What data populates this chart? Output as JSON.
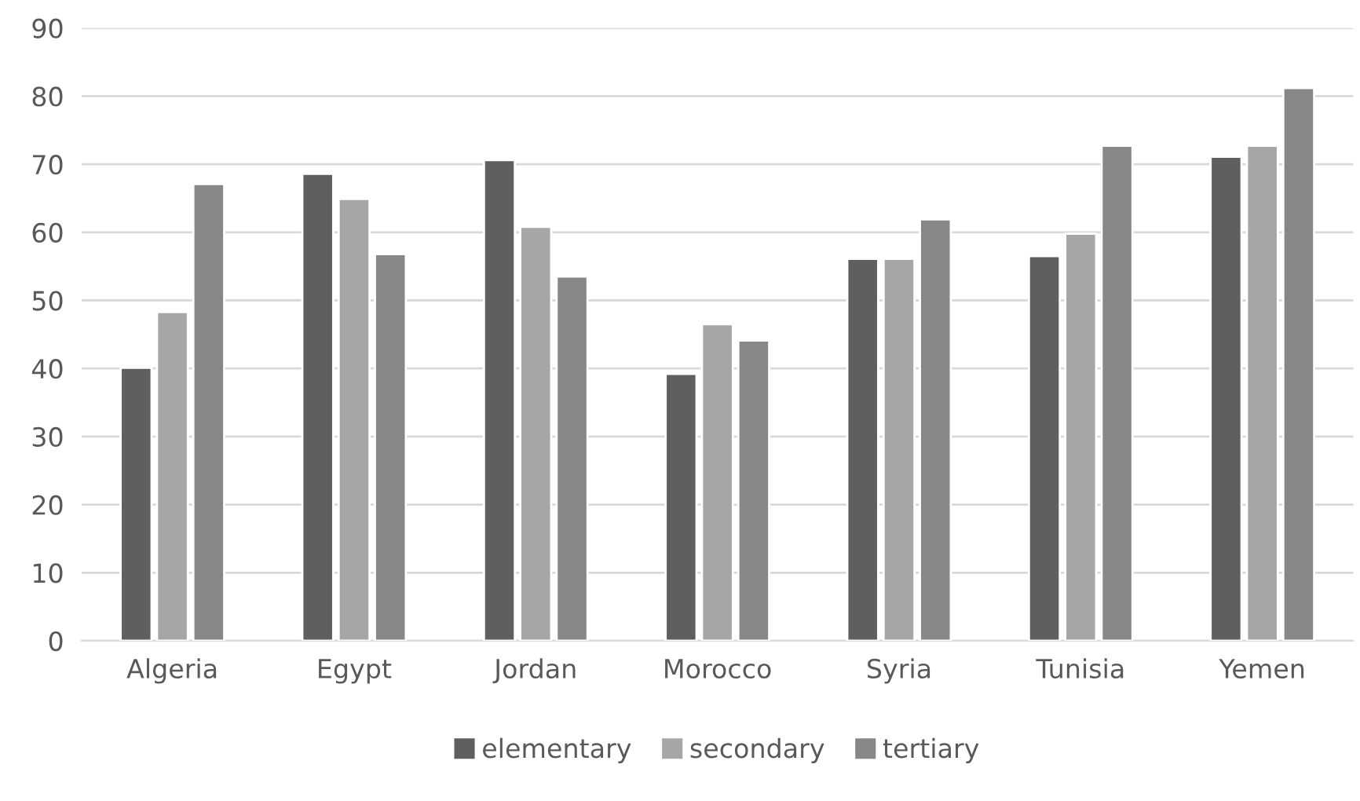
{
  "chart_data": {
    "type": "bar",
    "categories": [
      "Algeria",
      "Egypt",
      "Jordan",
      "Morocco",
      "Syria",
      "Tunisia",
      "Yemen"
    ],
    "series": [
      {
        "name": "elementary",
        "color": "#5f5f5f",
        "values": [
          40.1,
          68.6,
          70.6,
          39.2,
          56.1,
          56.5,
          71.1
        ]
      },
      {
        "name": "secondary",
        "color": "#a6a6a6",
        "values": [
          48.3,
          64.9,
          60.8,
          46.5,
          56.1,
          59.8,
          72.7
        ]
      },
      {
        "name": "tertiary",
        "color": "#878787",
        "values": [
          67.1,
          56.8,
          53.5,
          44.1,
          61.9,
          72.7,
          81.2
        ]
      }
    ],
    "ylim": [
      0,
      90
    ],
    "yticks": [
      0,
      10,
      20,
      30,
      40,
      50,
      60,
      70,
      80,
      90
    ],
    "grid": "y",
    "legend": "bottom"
  }
}
